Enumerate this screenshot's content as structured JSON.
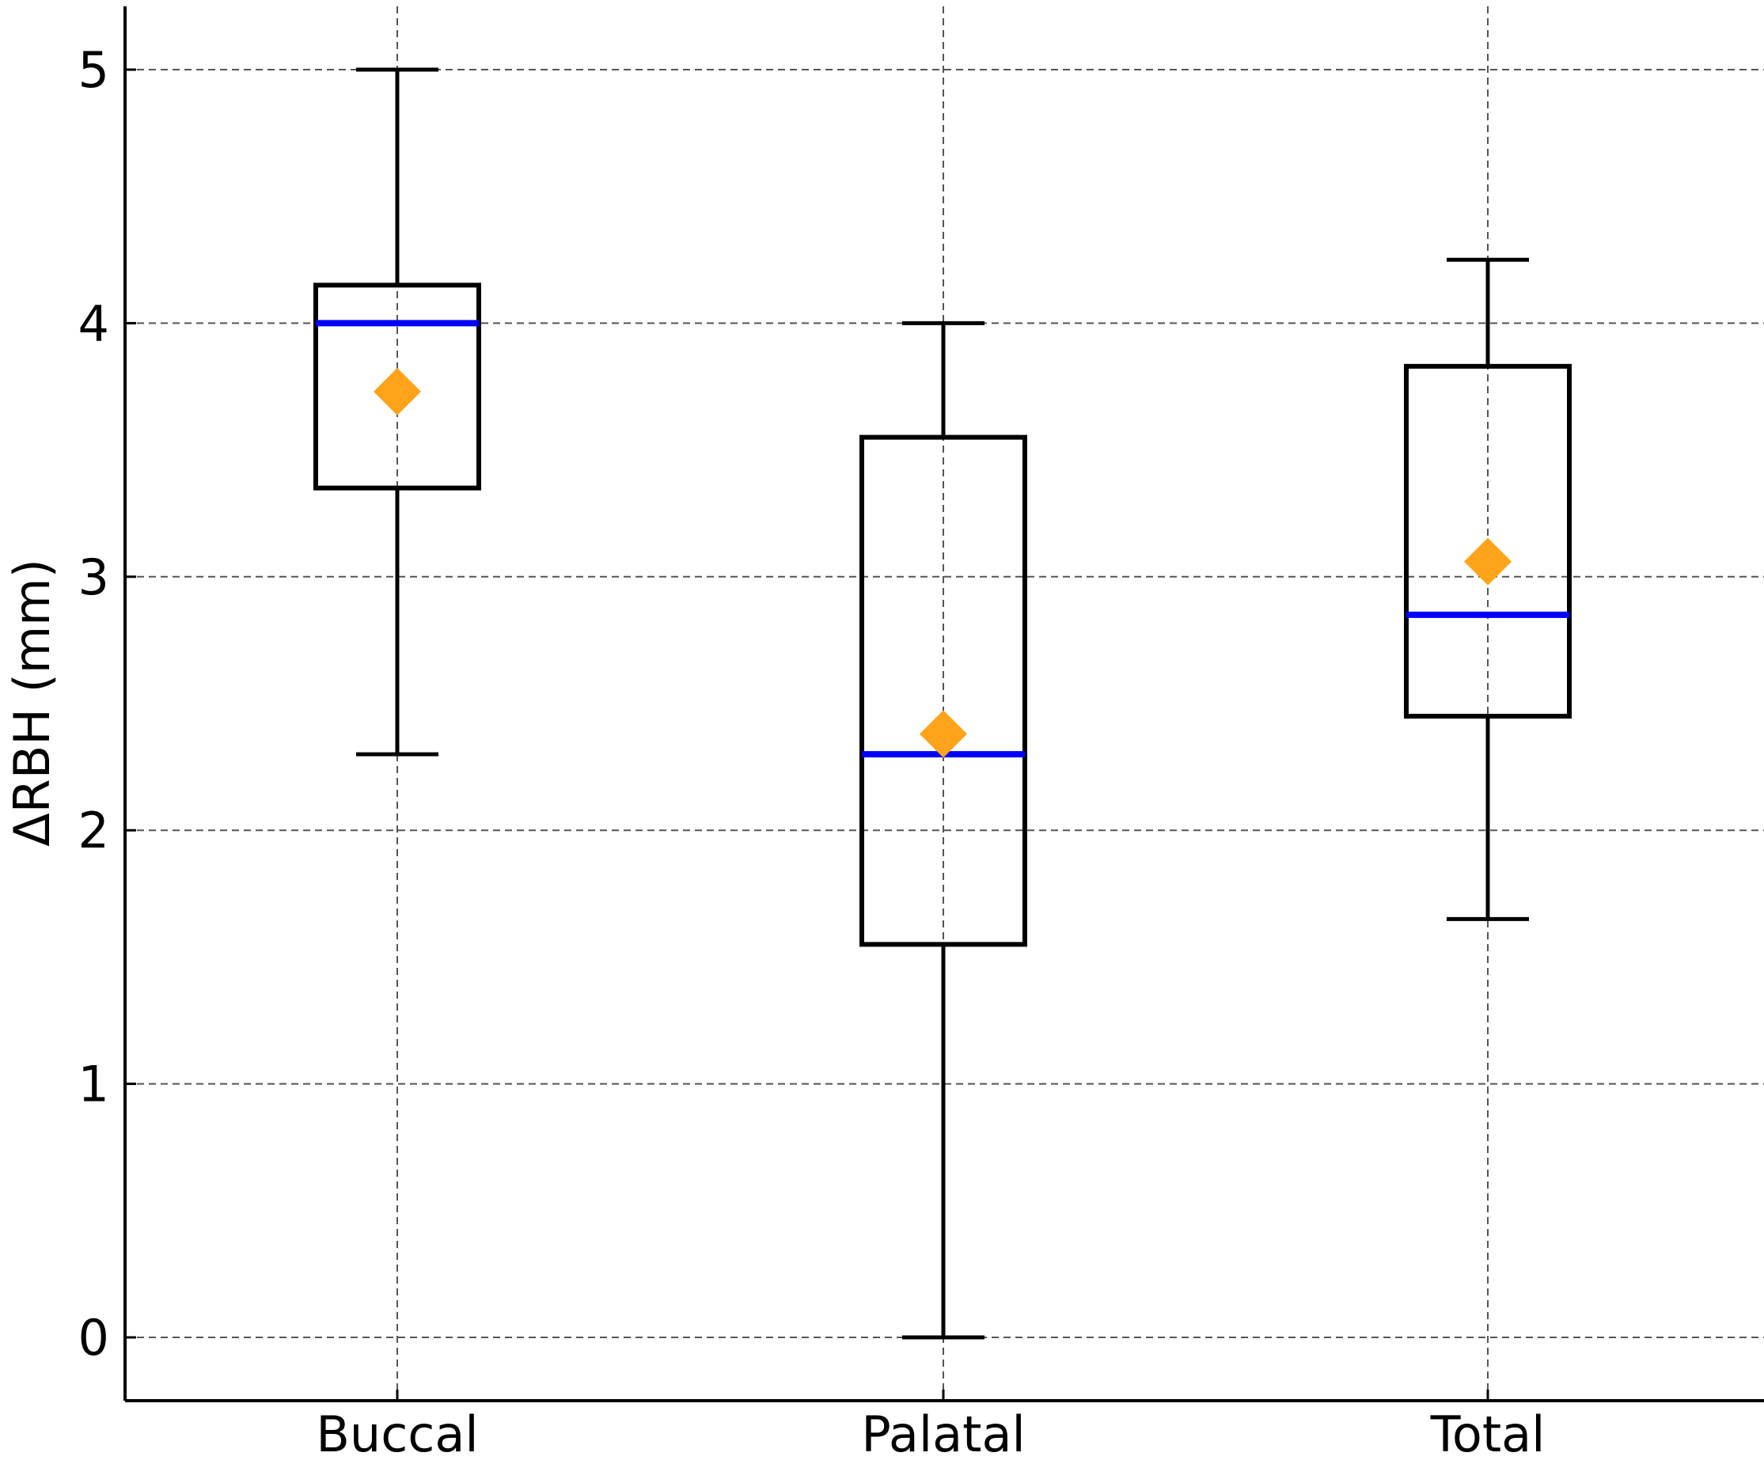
{
  "chart_data": {
    "type": "box",
    "title": "",
    "xlabel": "",
    "ylabel": "ΔRBH (mm)",
    "categories": [
      "Buccal",
      "Palatal",
      "Total"
    ],
    "boxes": [
      {
        "category": "Buccal",
        "whisker_low": 2.3,
        "q1": 3.35,
        "median": 4.0,
        "q3": 4.15,
        "whisker_high": 5.0,
        "mean": 3.73
      },
      {
        "category": "Palatal",
        "whisker_low": 0.0,
        "q1": 1.55,
        "median": 2.3,
        "q3": 3.55,
        "whisker_high": 4.0,
        "mean": 2.38
      },
      {
        "category": "Total",
        "whisker_low": 1.65,
        "q1": 2.45,
        "median": 2.85,
        "q3": 3.83,
        "whisker_high": 4.25,
        "mean": 3.06
      }
    ],
    "yticks": [
      "0",
      "1",
      "2",
      "3",
      "4",
      "5"
    ],
    "ylim": [
      -0.25,
      5.25
    ],
    "grid": true,
    "colors": {
      "box": "#000000",
      "median": "#0000ff",
      "mean_marker": "#ffa31a",
      "grid": "#555555"
    },
    "mean_marker_shape": "diamond"
  }
}
